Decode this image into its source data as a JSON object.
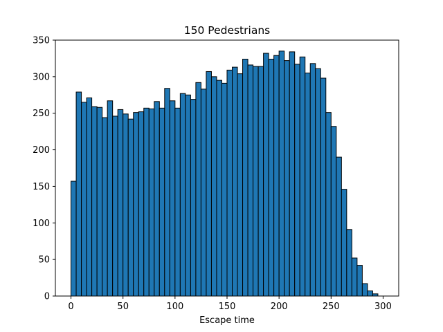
{
  "chart_data": {
    "type": "bar",
    "title": "150 Pedestrians",
    "xlabel": "Escape time",
    "ylabel": "",
    "xlim": [
      -15,
      315
    ],
    "ylim": [
      0,
      350
    ],
    "xticks": [
      0,
      50,
      100,
      150,
      200,
      250,
      300
    ],
    "yticks": [
      0,
      50,
      100,
      150,
      200,
      250,
      300,
      350
    ],
    "grid": false,
    "bar_color": "#1f77b4",
    "edge_color": "#000000",
    "bins": {
      "start": 0,
      "width": 5,
      "values": [
        157,
        279,
        265,
        271,
        259,
        258,
        244,
        267,
        246,
        255,
        249,
        242,
        251,
        252,
        257,
        256,
        266,
        257,
        284,
        267,
        257,
        277,
        275,
        269,
        292,
        283,
        307,
        300,
        295,
        291,
        309,
        313,
        304,
        324,
        316,
        314,
        314,
        332,
        324,
        329,
        335,
        322,
        334,
        317,
        327,
        305,
        318,
        311,
        298,
        251,
        232,
        190,
        146,
        91,
        52,
        42,
        17,
        7,
        3
      ]
    }
  }
}
